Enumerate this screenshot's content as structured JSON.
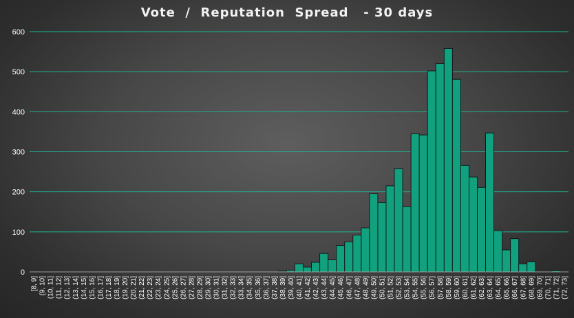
{
  "chart_data": {
    "type": "bar",
    "title": "Vote  /  Reputation  Spread   - 30 days",
    "xlabel": "",
    "ylabel": "",
    "ylim": [
      0,
      600
    ],
    "yticks": [
      0,
      100,
      200,
      300,
      400,
      500,
      600
    ],
    "grid": true,
    "legend": "none",
    "bar_color": "#11a17e",
    "grid_color": "#1fb391",
    "categories": [
      "[8, 9]",
      "(9, 10]",
      "(10, 11]",
      "(11, 12]",
      "(12, 13]",
      "(13, 14]",
      "(14, 15]",
      "(15, 16]",
      "(16, 17]",
      "(17, 18]",
      "(18, 19]",
      "(19, 20]",
      "(20, 21]",
      "(21, 22]",
      "(22, 23]",
      "(23, 24]",
      "(24, 25]",
      "(25, 26]",
      "(26, 27]",
      "(27, 28]",
      "(28, 29]",
      "(29, 30]",
      "(30, 31]",
      "(31, 32]",
      "(32, 33]",
      "(33, 34]",
      "(34, 35]",
      "(35, 36]",
      "(36, 37]",
      "(37, 38]",
      "(38, 39]",
      "(39, 40]",
      "(40, 41]",
      "(41, 42]",
      "(42, 43]",
      "(43, 44]",
      "(44, 45]",
      "(45, 46]",
      "(46, 47]",
      "(47, 48]",
      "(48, 49]",
      "(49, 50]",
      "(50, 51]",
      "(51, 52]",
      "(52, 53]",
      "(53, 54]",
      "(54, 55]",
      "(55, 56]",
      "(56, 57]",
      "(57, 58]",
      "(58, 59]",
      "(59, 60]",
      "(60, 61]",
      "(61, 62]",
      "(62, 63]",
      "(63, 64]",
      "(64, 65]",
      "(65, 66]",
      "(66, 67]",
      "(67, 68]",
      "(68, 69]",
      "(69, 70]",
      "(70, 71]",
      "(71, 72]",
      "(72, 73]"
    ],
    "values": [
      0,
      0,
      0,
      0,
      0,
      0,
      0,
      0,
      0,
      0,
      0,
      0,
      0,
      0,
      0,
      0,
      0,
      0,
      0,
      0,
      0,
      0,
      0,
      0,
      0,
      0,
      0,
      0,
      0,
      0,
      2,
      4,
      20,
      12,
      24,
      46,
      30,
      66,
      75,
      92,
      110,
      195,
      173,
      215,
      258,
      163,
      345,
      342,
      502,
      520,
      558,
      481,
      266,
      237,
      211,
      347,
      103,
      55,
      83,
      20,
      25,
      0,
      0,
      3,
      0
    ]
  }
}
